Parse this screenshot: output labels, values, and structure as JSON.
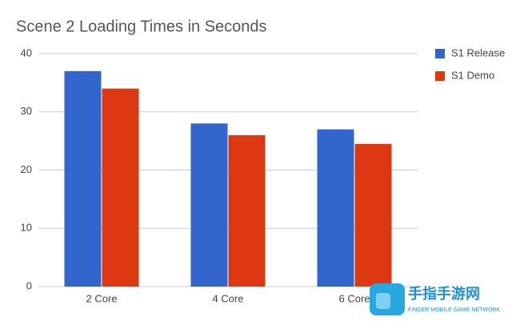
{
  "chart_data": {
    "type": "bar",
    "title": "Scene 2 Loading Times in Seconds",
    "categories": [
      "2 Core",
      "4 Core",
      "6 Core"
    ],
    "series": [
      {
        "name": "S1 Release",
        "color": "#3366cc",
        "values": [
          37,
          28,
          27
        ]
      },
      {
        "name": "S1 Demo",
        "color": "#dc3912",
        "values": [
          34,
          26,
          24.5
        ]
      }
    ],
    "ylim": [
      0,
      40
    ],
    "yticks": [
      0,
      10,
      20,
      30,
      40
    ],
    "grid": true,
    "legend": "right"
  },
  "watermark": {
    "title": "手指手游网",
    "subtitle": "FINGER MOBILE GAME NETWORK"
  }
}
